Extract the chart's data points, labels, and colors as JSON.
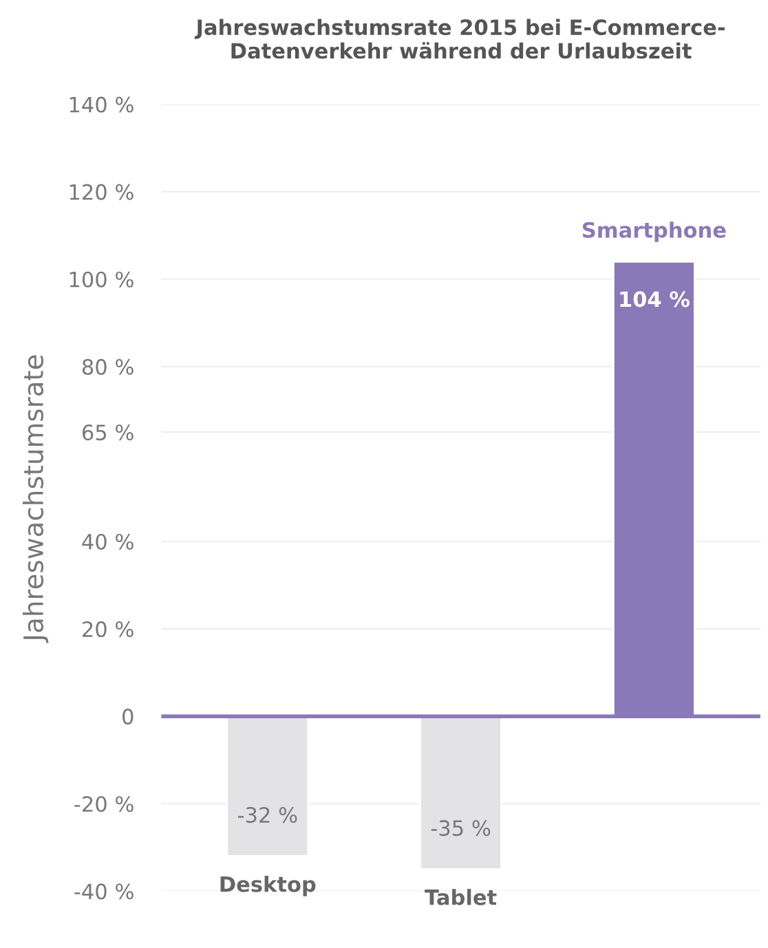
{
  "chart_data": {
    "type": "bar",
    "title": "Jahreswachstumsrate 2015 bei E-Commerce-\nDatenverkehr während der Urlaubszeit",
    "ylabel": "Jahreswachstumsrate",
    "categories": [
      "Desktop",
      "Tablet",
      "Smartphone"
    ],
    "values": [
      -32,
      -35,
      104
    ],
    "colors": [
      "#e3e3e6",
      "#e3e3e6",
      "#8a78b8"
    ],
    "value_labels": [
      "-32 %",
      "-35 %",
      "104 %"
    ],
    "ylim": [
      -40,
      140
    ],
    "yticks": [
      {
        "value": -40,
        "label": "-40 %"
      },
      {
        "value": -20,
        "label": "-20 %"
      },
      {
        "value": 0,
        "label": "0"
      },
      {
        "value": 20,
        "label": "20 %"
      },
      {
        "value": 40,
        "label": "40 %"
      },
      {
        "value": 65,
        "label": "65 %"
      },
      {
        "value": 80,
        "label": "80 %"
      },
      {
        "value": 100,
        "label": "100 %"
      },
      {
        "value": 120,
        "label": "120 %"
      },
      {
        "value": 140,
        "label": "140 %"
      }
    ],
    "ref_lines": [
      {
        "axis": "y",
        "value": 0,
        "color": "#8a78b8"
      }
    ],
    "grid": "y",
    "tick_labels": "y",
    "legend": false
  }
}
